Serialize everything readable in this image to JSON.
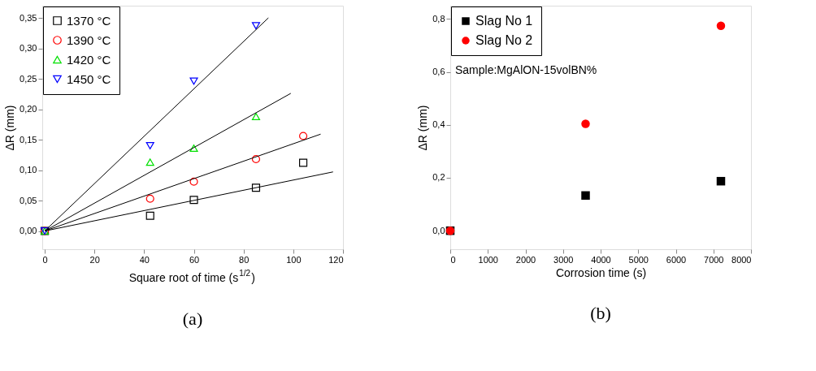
{
  "chart_data": [
    {
      "type": "scatter",
      "xlabel": "Square root of time (s$^{1/2}$)",
      "ylabel": "ΔR (mm)",
      "annotations": [
        "(a)"
      ],
      "xlim": [
        -1,
        120
      ],
      "xticks": [
        0,
        20,
        40,
        60,
        80,
        100,
        120
      ],
      "ylim": [
        -0.03,
        0.37
      ],
      "yticks": [
        {
          "value": 0,
          "label": "0,00"
        },
        {
          "value": 0.05,
          "label": "0,05"
        },
        {
          "value": 0.1,
          "label": "0,10"
        },
        {
          "value": 0.15,
          "label": "0,15"
        },
        {
          "value": 0.2,
          "label": "0,20"
        },
        {
          "value": 0.25,
          "label": "0,25"
        },
        {
          "value": 0.3,
          "label": "0,30"
        },
        {
          "value": 0.35,
          "label": "0,35"
        }
      ],
      "grid": false,
      "legend": "top left",
      "series": [
        {
          "name": "1370 °C",
          "color": "#000000",
          "marker": "square",
          "x": [
            0,
            42.4,
            60,
            85,
            104
          ],
          "values": [
            0,
            0.025,
            0.051,
            0.071,
            0.112
          ]
        },
        {
          "name": "1390 °C",
          "color": "#ff0000",
          "marker": "circle",
          "x": [
            0,
            42.4,
            60,
            85,
            104
          ],
          "values": [
            0,
            0.053,
            0.081,
            0.118,
            0.156
          ]
        },
        {
          "name": "1420 °C",
          "color": "#00e000",
          "marker": "triangle",
          "x": [
            0,
            42.4,
            60,
            85
          ],
          "values": [
            0,
            0.113,
            0.136,
            0.188
          ]
        },
        {
          "name": "1450 °C",
          "color": "#0000ff",
          "marker": "triangle_down",
          "x": [
            0,
            42.4,
            60,
            85
          ],
          "values": [
            0,
            0.14,
            0.246,
            0.337
          ]
        },
        {
          "type": "line",
          "color": "#000000",
          "marker": "none",
          "x": [
            0,
            116
          ],
          "values": [
            0,
            0.097
          ]
        },
        {
          "type": "line",
          "color": "#000000",
          "marker": "none",
          "x": [
            0,
            111
          ],
          "values": [
            0,
            0.159
          ]
        },
        {
          "type": "line",
          "color": "#000000",
          "marker": "none",
          "x": [
            0,
            99
          ],
          "values": [
            0,
            0.226
          ]
        },
        {
          "type": "line",
          "color": "#000000",
          "marker": "none",
          "x": [
            0,
            90
          ],
          "values": [
            0,
            0.35
          ]
        }
      ]
    },
    {
      "type": "scatter",
      "xlabel": "Corrosion time (s)",
      "ylabel": "ΔR (mm)",
      "annotations": [
        "Sample:MgAlON-15volBN%",
        "(b)"
      ],
      "xlim": [
        0,
        8000
      ],
      "xticks": [
        0,
        1000,
        2000,
        3000,
        4000,
        5000,
        6000,
        7000,
        8000
      ],
      "ylim": [
        -0.07,
        0.85
      ],
      "yticks": [
        {
          "value": 0,
          "label": "0,0"
        },
        {
          "value": 0.2,
          "label": "0,2"
        },
        {
          "value": 0.4,
          "label": "0,4"
        },
        {
          "value": 0.6,
          "label": "0,6"
        },
        {
          "value": 0.8,
          "label": "0,8"
        }
      ],
      "grid": false,
      "legend": "top left",
      "series": [
        {
          "name": "Slag No 1",
          "color": "#000000",
          "marker": "square",
          "x": [
            0,
            3600,
            7200
          ],
          "values": [
            0,
            0.133,
            0.187
          ]
        },
        {
          "name": "Slag No 2",
          "color": "#ff0000",
          "marker": "circle",
          "x": [
            0,
            3600,
            7200
          ],
          "values": [
            0,
            0.404,
            0.774
          ]
        }
      ]
    }
  ]
}
